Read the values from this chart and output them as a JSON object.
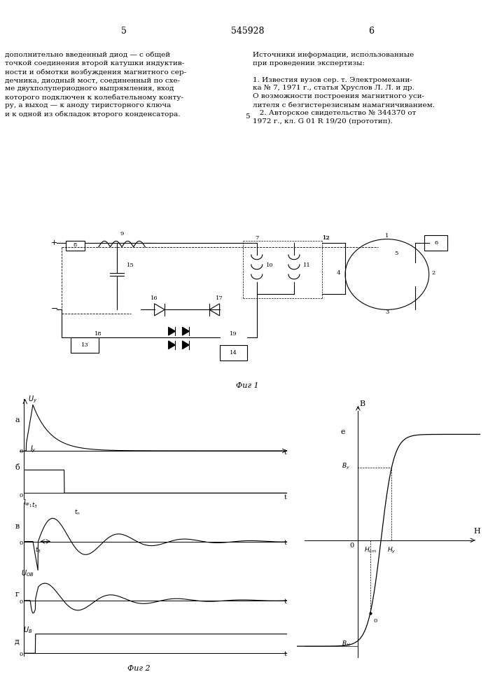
{
  "title_number": "545928",
  "page_left": "5",
  "page_right": "6",
  "text_left": "дополнительно введенный диод — с общей\nточкой соединения второй катушки индуктив-\nности и обмотки возбуждения магнитного сер-\nдечника, диодный мост, соединенный по схе-\nме двухполупериодного выпрямления, вход\nкоторого подключен к колебательному конту-\nру, а выход — к аноду тиристорного ключа\nи к одной из обкладок второго конденсатора.",
  "text_right": "Источники информации, использованные\nпри проведении экспертизы:\n\n1. Известия вузов сер. т. Электромехани-\nка № 7, 1971 г., статья Хруслов Л. Л. и др.\nО возможности построения магнитного уси-\nлителя с безгистерезисным намагничиванием.\n   2. Авторское свидетельство № 344370 от\n1972 г., кл. G 01 R 19/20 (прототип).",
  "fig1_caption": "Фиг 1",
  "fig2_caption": "Фиг 2",
  "bg_color": "#ffffff",
  "line_color": "#000000",
  "font_size_title": 9,
  "font_size_text": 7.5,
  "font_size_label": 7
}
